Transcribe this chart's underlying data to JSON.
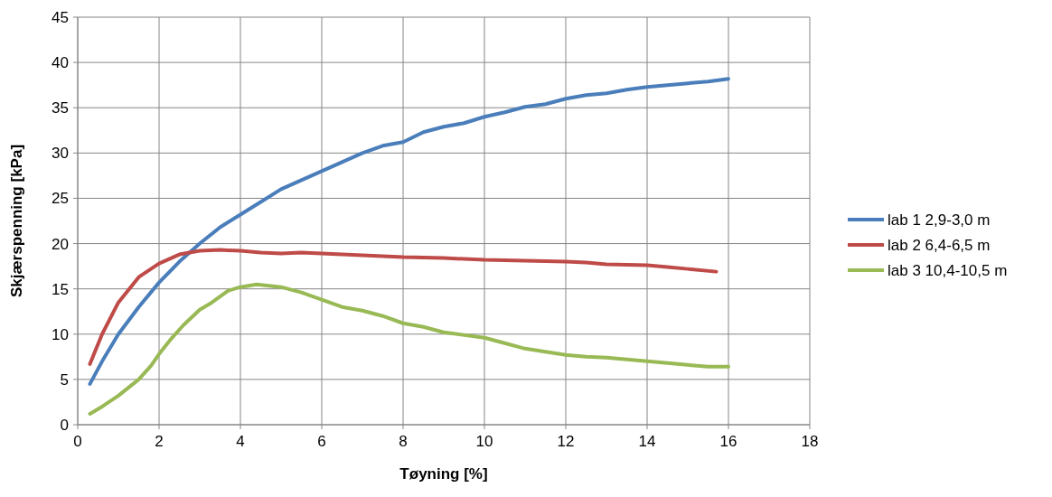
{
  "chart_data": {
    "type": "line",
    "xlabel": "Tøyning [%]",
    "ylabel": "Skjærspenning [kPa]",
    "xlim": [
      0,
      18
    ],
    "xticks": [
      0,
      2,
      4,
      6,
      8,
      10,
      12,
      14,
      16,
      18
    ],
    "ylim": [
      0,
      45
    ],
    "yticks": [
      0,
      5,
      10,
      15,
      20,
      25,
      30,
      35,
      40,
      45
    ],
    "grid": true,
    "legend": "right",
    "marker": "none",
    "line_style": "solid",
    "series": [
      {
        "name": "lab 1 2,9-3,0 m",
        "color": "#4a7ebb",
        "x": [
          0.3,
          0.6,
          1,
          1.5,
          2,
          2.5,
          3,
          3.5,
          4,
          4.5,
          5,
          5.5,
          6,
          6.5,
          7,
          7.5,
          8,
          8.5,
          9,
          9.5,
          10,
          10.5,
          11,
          11.5,
          12,
          12.5,
          13,
          13.5,
          14,
          14.5,
          15,
          15.5,
          16
        ],
        "values": [
          4.5,
          7,
          10,
          13,
          15.7,
          18,
          20,
          21.8,
          23.2,
          24.6,
          26,
          27,
          28,
          29,
          30,
          30.8,
          31.2,
          32.3,
          32.9,
          33.3,
          34,
          34.5,
          35.1,
          35.4,
          36,
          36.4,
          36.6,
          37,
          37.3,
          37.5,
          37.7,
          37.9,
          38.2
        ]
      },
      {
        "name": "lab 2  6,4-6,5 m",
        "color": "#be4b48",
        "x": [
          0.3,
          0.6,
          1,
          1.5,
          2,
          2.5,
          3,
          3.5,
          4,
          4.5,
          5,
          5.5,
          6,
          6.5,
          7,
          8,
          9,
          10,
          11,
          12,
          12.5,
          13,
          14,
          14.5,
          15,
          15.7
        ],
        "values": [
          6.7,
          10,
          13.5,
          16.3,
          17.8,
          18.8,
          19.2,
          19.3,
          19.2,
          19,
          18.9,
          19,
          18.9,
          18.8,
          18.7,
          18.5,
          18.4,
          18.2,
          18.1,
          18,
          17.9,
          17.7,
          17.6,
          17.4,
          17.2,
          16.9
        ]
      },
      {
        "name": "lab 3  10,4-10,5 m",
        "color": "#98b954",
        "x": [
          0.3,
          0.6,
          1,
          1.5,
          1.8,
          2,
          2.3,
          2.6,
          3,
          3.3,
          3.7,
          4,
          4.4,
          5,
          5.5,
          6,
          6.5,
          7,
          7.5,
          8,
          8.5,
          9,
          10,
          10.5,
          11,
          12,
          12.5,
          13,
          13.5,
          14,
          14.5,
          15,
          15.5,
          16
        ],
        "values": [
          1.2,
          2,
          3.2,
          5,
          6.5,
          7.8,
          9.5,
          11,
          12.7,
          13.5,
          14.8,
          15.2,
          15.5,
          15.2,
          14.6,
          13.8,
          13,
          12.6,
          12,
          11.2,
          10.8,
          10.2,
          9.6,
          9,
          8.4,
          7.7,
          7.5,
          7.4,
          7.2,
          7,
          6.8,
          6.6,
          6.4,
          6.4
        ]
      }
    ]
  }
}
